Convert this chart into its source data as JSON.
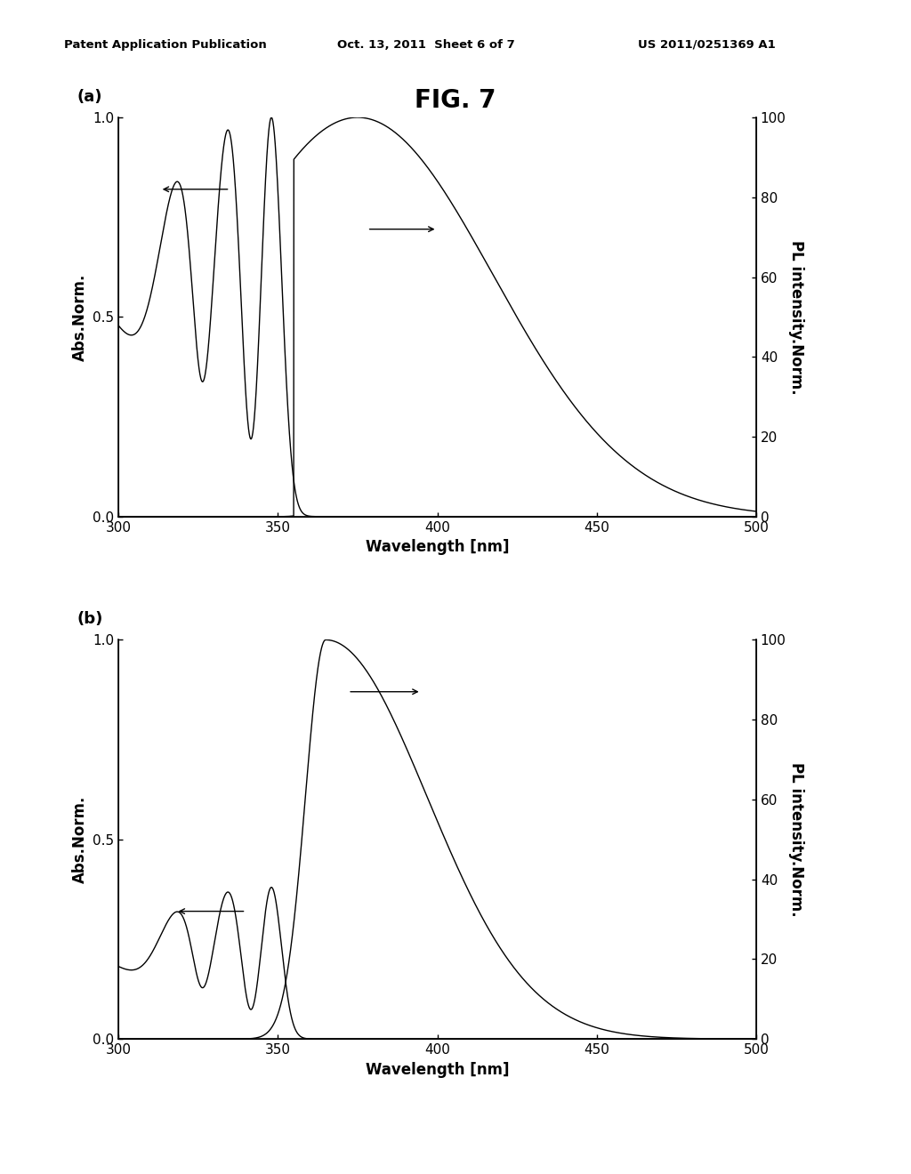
{
  "title": "FIG. 7",
  "header_left": "Patent Application Publication",
  "header_center": "Oct. 13, 2011  Sheet 6 of 7",
  "header_right": "US 2011/0251369 A1",
  "subplot_a_label": "(a)",
  "subplot_b_label": "(b)",
  "xlabel": "Wavelength [nm]",
  "ylabel_left": "Abs.Norm.",
  "ylabel_right": "PL intensity.Norm.",
  "xlim": [
    300,
    500
  ],
  "ylim_left": [
    0.0,
    1.0
  ],
  "ylim_right": [
    0,
    100
  ],
  "xticks": [
    300,
    350,
    400,
    450,
    500
  ],
  "yticks_left": [
    0.0,
    0.5,
    1.0
  ],
  "yticks_right": [
    0,
    20,
    40,
    60,
    80,
    100
  ],
  "line_color": "#000000",
  "background_color": "#ffffff"
}
